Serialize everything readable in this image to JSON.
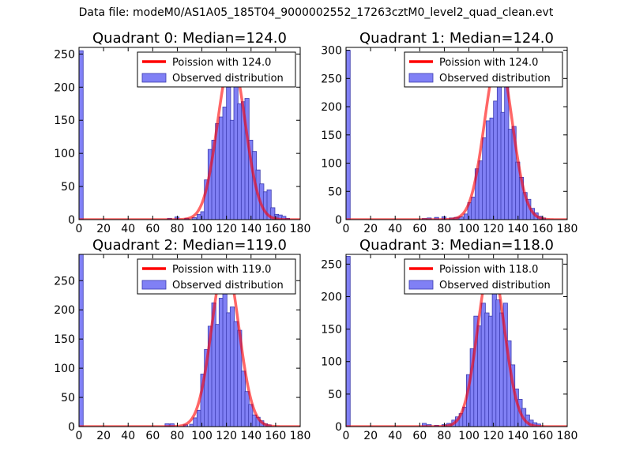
{
  "figure": {
    "suptitle": "Data file: modeM0/AS1A05_185T04_9000002552_17263cztM0_level2_quad_clean.evt"
  },
  "colors": {
    "bar_fill": "#8080f5",
    "bar_edge": "#3b3bb0",
    "curve": "#ff0000",
    "axes": "#000000"
  },
  "chart_data": [
    {
      "type": "bar",
      "title": "Quadrant 0: Median=124.0",
      "xlim": [
        0,
        180
      ],
      "ylim": [
        0,
        260
      ],
      "xticks": [
        "0",
        "20",
        "40",
        "60",
        "80",
        "100",
        "120",
        "140",
        "160",
        "180"
      ],
      "yticks": [
        "0",
        "50",
        "100",
        "150",
        "200",
        "250"
      ],
      "legend": [
        "Poission with 124.0",
        "Observed distribution"
      ],
      "bin_width": 3.4,
      "bins": [
        [
          0,
          255
        ],
        [
          72,
          2
        ],
        [
          78,
          4
        ],
        [
          86,
          2
        ],
        [
          92,
          3
        ],
        [
          96,
          8
        ],
        [
          99,
          12
        ],
        [
          102,
          60
        ],
        [
          105,
          106
        ],
        [
          108,
          120
        ],
        [
          111,
          145
        ],
        [
          114,
          155
        ],
        [
          117,
          170
        ],
        [
          120,
          200
        ],
        [
          123,
          150
        ],
        [
          126,
          240
        ],
        [
          129,
          175
        ],
        [
          132,
          178
        ],
        [
          135,
          183
        ],
        [
          138,
          120
        ],
        [
          141,
          103
        ],
        [
          144,
          75
        ],
        [
          147,
          54
        ],
        [
          150,
          42
        ],
        [
          153,
          45
        ],
        [
          156,
          18
        ],
        [
          159,
          8
        ],
        [
          162,
          7
        ],
        [
          165,
          5
        ],
        [
          168,
          2
        ]
      ],
      "poisson": {
        "mean": 124.0,
        "peak": 243,
        "sigma": 11.2
      }
    },
    {
      "type": "bar",
      "title": "Quadrant 1: Median=124.0",
      "xlim": [
        0,
        180
      ],
      "ylim": [
        0,
        305
      ],
      "xticks": [
        "0",
        "20",
        "40",
        "60",
        "80",
        "100",
        "120",
        "140",
        "160",
        "180"
      ],
      "yticks": [
        "0",
        "50",
        "100",
        "150",
        "200",
        "250",
        "300"
      ],
      "legend": [
        "Poission with 124.0",
        "Observed distribution"
      ],
      "bin_width": 3.4,
      "bins": [
        [
          0,
          300
        ],
        [
          62,
          2
        ],
        [
          66,
          3
        ],
        [
          72,
          4
        ],
        [
          78,
          5
        ],
        [
          84,
          3
        ],
        [
          88,
          4
        ],
        [
          92,
          5
        ],
        [
          96,
          10
        ],
        [
          99,
          30
        ],
        [
          102,
          40
        ],
        [
          105,
          90
        ],
        [
          108,
          104
        ],
        [
          111,
          145
        ],
        [
          114,
          175
        ],
        [
          117,
          180
        ],
        [
          120,
          210
        ],
        [
          123,
          260
        ],
        [
          126,
          190
        ],
        [
          129,
          255
        ],
        [
          132,
          160
        ],
        [
          135,
          165
        ],
        [
          138,
          102
        ],
        [
          141,
          75
        ],
        [
          144,
          48
        ],
        [
          147,
          36
        ],
        [
          150,
          20
        ],
        [
          153,
          12
        ],
        [
          156,
          6
        ],
        [
          159,
          3
        ]
      ],
      "poisson": {
        "mean": 124.0,
        "peak": 288,
        "sigma": 11.2
      }
    },
    {
      "type": "bar",
      "title": "Quadrant 2: Median=119.0",
      "xlim": [
        0,
        180
      ],
      "ylim": [
        0,
        295
      ],
      "xticks": [
        "0",
        "20",
        "40",
        "60",
        "80",
        "100",
        "120",
        "140",
        "160",
        "180"
      ],
      "yticks": [
        "0",
        "50",
        "100",
        "150",
        "200",
        "250"
      ],
      "legend": [
        "Poission with 119.0",
        "Observed distribution"
      ],
      "bin_width": 3.4,
      "bins": [
        [
          0,
          295
        ],
        [
          70,
          5
        ],
        [
          74,
          5
        ],
        [
          85,
          3
        ],
        [
          90,
          4
        ],
        [
          93,
          15
        ],
        [
          96,
          28
        ],
        [
          99,
          90
        ],
        [
          102,
          132
        ],
        [
          105,
          172
        ],
        [
          108,
          212
        ],
        [
          111,
          175
        ],
        [
          114,
          220
        ],
        [
          117,
          255
        ],
        [
          120,
          195
        ],
        [
          123,
          205
        ],
        [
          126,
          180
        ],
        [
          129,
          165
        ],
        [
          132,
          95
        ],
        [
          135,
          60
        ],
        [
          138,
          38
        ],
        [
          141,
          20
        ],
        [
          144,
          16
        ],
        [
          147,
          10
        ],
        [
          150,
          5
        ],
        [
          153,
          3
        ]
      ],
      "poisson": {
        "mean": 119.0,
        "peak": 283,
        "sigma": 11.0
      }
    },
    {
      "type": "bar",
      "title": "Quadrant 3: Median=118.0",
      "xlim": [
        0,
        180
      ],
      "ylim": [
        0,
        265
      ],
      "xticks": [
        "0",
        "20",
        "40",
        "60",
        "80",
        "100",
        "120",
        "140",
        "160",
        "180"
      ],
      "yticks": [
        "0",
        "50",
        "100",
        "150",
        "200",
        "250"
      ],
      "legend": [
        "Poission with 118.0",
        "Observed distribution"
      ],
      "bin_width": 3.4,
      "bins": [
        [
          0,
          262
        ],
        [
          62,
          5
        ],
        [
          66,
          3
        ],
        [
          72,
          2
        ],
        [
          78,
          3
        ],
        [
          82,
          5
        ],
        [
          86,
          10
        ],
        [
          89,
          15
        ],
        [
          92,
          20
        ],
        [
          95,
          30
        ],
        [
          98,
          80
        ],
        [
          101,
          120
        ],
        [
          104,
          170
        ],
        [
          107,
          155
        ],
        [
          110,
          190
        ],
        [
          113,
          175
        ],
        [
          116,
          170
        ],
        [
          119,
          220
        ],
        [
          122,
          195
        ],
        [
          125,
          175
        ],
        [
          128,
          190
        ],
        [
          131,
          132
        ],
        [
          134,
          95
        ],
        [
          137,
          58
        ],
        [
          140,
          42
        ],
        [
          143,
          28
        ],
        [
          146,
          18
        ],
        [
          149,
          10
        ],
        [
          152,
          6
        ],
        [
          155,
          4
        ]
      ],
      "poisson": {
        "mean": 118.0,
        "peak": 252,
        "sigma": 10.8
      }
    }
  ]
}
